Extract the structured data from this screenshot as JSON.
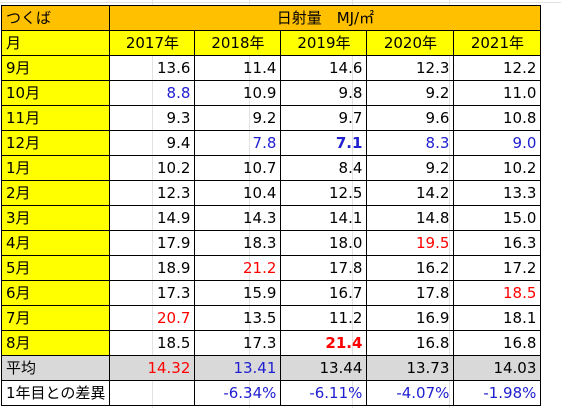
{
  "location": "つくば",
  "title": "日射量　MJ/㎡",
  "month_header": "月",
  "years": [
    "2017年",
    "2018年",
    "2019年",
    "2020年",
    "2021年"
  ],
  "rows": [
    {
      "month": "9月",
      "values": [
        "13.6",
        "11.4",
        "14.6",
        "12.3",
        "12.2"
      ],
      "styles": [
        "",
        "",
        "",
        "",
        ""
      ]
    },
    {
      "month": "10月",
      "values": [
        "8.8",
        "10.9",
        "9.8",
        "9.2",
        "11.0"
      ],
      "styles": [
        "blue",
        "",
        "",
        "",
        ""
      ]
    },
    {
      "month": "11月",
      "values": [
        "9.3",
        "9.2",
        "9.7",
        "9.6",
        "10.8"
      ],
      "styles": [
        "",
        "",
        "",
        "",
        ""
      ]
    },
    {
      "month": "12月",
      "values": [
        "9.4",
        "7.8",
        "7.1",
        "8.3",
        "9.0"
      ],
      "styles": [
        "",
        "blue",
        "blue bold",
        "blue",
        "blue"
      ]
    },
    {
      "month": "1月",
      "values": [
        "10.2",
        "10.7",
        "8.4",
        "9.2",
        "10.2"
      ],
      "styles": [
        "",
        "",
        "",
        "",
        ""
      ]
    },
    {
      "month": "2月",
      "values": [
        "12.3",
        "10.4",
        "12.5",
        "14.2",
        "13.3"
      ],
      "styles": [
        "",
        "",
        "",
        "",
        ""
      ]
    },
    {
      "month": "3月",
      "values": [
        "14.9",
        "14.3",
        "14.1",
        "14.8",
        "15.0"
      ],
      "styles": [
        "",
        "",
        "",
        "",
        ""
      ]
    },
    {
      "month": "4月",
      "values": [
        "17.9",
        "18.3",
        "18.0",
        "19.5",
        "16.3"
      ],
      "styles": [
        "",
        "",
        "",
        "red",
        ""
      ]
    },
    {
      "month": "5月",
      "values": [
        "18.9",
        "21.2",
        "17.8",
        "16.2",
        "17.2"
      ],
      "styles": [
        "",
        "red",
        "",
        "",
        ""
      ]
    },
    {
      "month": "6月",
      "values": [
        "17.3",
        "15.9",
        "16.7",
        "17.8",
        "18.5"
      ],
      "styles": [
        "",
        "",
        "",
        "",
        "red"
      ]
    },
    {
      "month": "7月",
      "values": [
        "20.7",
        "13.5",
        "11.2",
        "16.9",
        "18.1"
      ],
      "styles": [
        "red",
        "",
        "",
        "",
        ""
      ]
    },
    {
      "month": "8月",
      "values": [
        "18.5",
        "17.3",
        "21.4",
        "16.8",
        "16.8"
      ],
      "styles": [
        "",
        "",
        "red bold",
        "",
        ""
      ]
    }
  ],
  "average": {
    "label": "平均",
    "values": [
      "14.32",
      "13.41",
      "13.44",
      "13.73",
      "14.03"
    ],
    "styles": [
      "red",
      "blue",
      "",
      "",
      ""
    ]
  },
  "diff": {
    "label": "1年目との差異",
    "values": [
      "",
      "-6.34%",
      "-6.11%",
      "-4.07%",
      "-1.98%"
    ],
    "styles": [
      "",
      "blue",
      "blue",
      "blue",
      "blue"
    ]
  },
  "colors": {
    "header_orange": "#ffc000",
    "label_yellow": "#ffff00",
    "average_gray": "#d9d9d9",
    "low_blue": "#2020d0",
    "high_red": "#ff0000"
  }
}
